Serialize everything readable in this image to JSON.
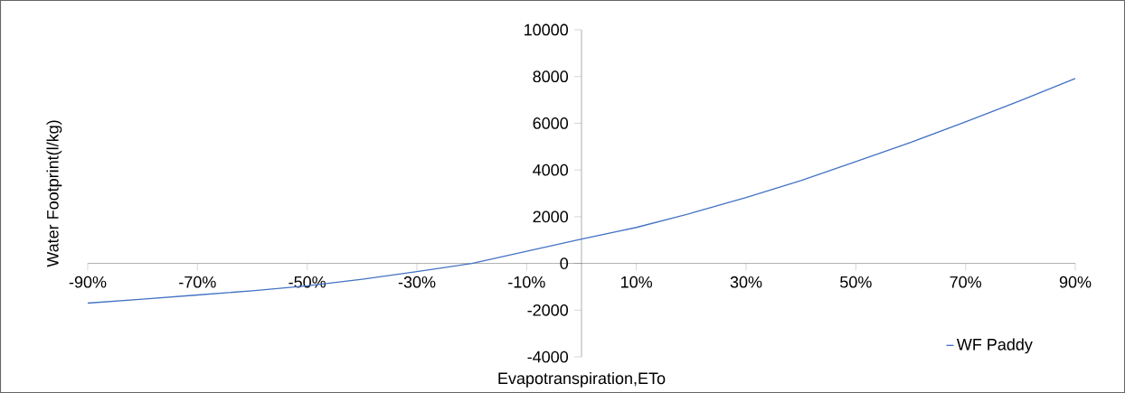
{
  "chart_data": {
    "type": "line",
    "xlabel": "Evapotranspiration,ETo",
    "ylabel": "Water Footprint(l/kg)",
    "xlim": [
      -90,
      90
    ],
    "ylim": [
      -4000,
      10000
    ],
    "xticks": [
      {
        "value": -90,
        "label": "-90%"
      },
      {
        "value": -70,
        "label": "-70%"
      },
      {
        "value": -50,
        "label": "-50%"
      },
      {
        "value": -30,
        "label": "-30%"
      },
      {
        "value": -10,
        "label": "-10%"
      },
      {
        "value": 10,
        "label": "10%"
      },
      {
        "value": 30,
        "label": "30%"
      },
      {
        "value": 50,
        "label": "50%"
      },
      {
        "value": 70,
        "label": "70%"
      },
      {
        "value": 90,
        "label": "90%"
      }
    ],
    "yticks": [
      -4000,
      -2000,
      0,
      2000,
      4000,
      6000,
      8000,
      10000
    ],
    "x": [
      -90,
      -80,
      -70,
      -60,
      -50,
      -40,
      -30,
      -20,
      -10,
      0,
      10,
      20,
      30,
      40,
      50,
      60,
      70,
      80,
      90
    ],
    "series": [
      {
        "name": "WF Paddy",
        "color": "#4472c4",
        "values": [
          -1700,
          -1530,
          -1350,
          -1170,
          -960,
          -680,
          -350,
          0,
          520,
          1040,
          1540,
          2150,
          2820,
          3550,
          4360,
          5180,
          6060,
          6970,
          7920
        ]
      }
    ],
    "legend": "bottom right",
    "marker": "none",
    "line_style": "solid",
    "grid": false
  }
}
